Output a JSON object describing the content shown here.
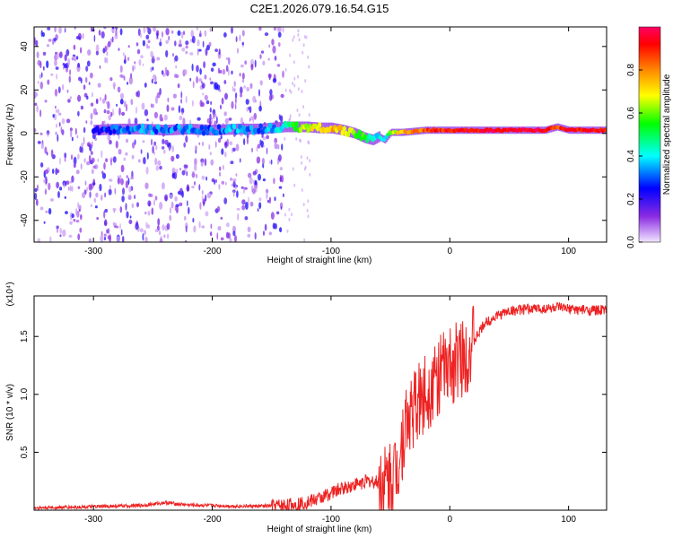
{
  "figure": {
    "title": "C2E1.2026.079.16.54.G15"
  },
  "chart_data": [
    {
      "type": "heatmap",
      "xlabel": "Height of straight line (km)",
      "ylabel": "Frequency (Hz)",
      "xlim": [
        -350,
        132
      ],
      "ylim": [
        -50,
        49
      ],
      "xticks": [
        -300,
        -200,
        -100,
        0,
        100
      ],
      "xtick_labels": [
        "-300",
        "-200",
        "-100",
        "0",
        "100"
      ],
      "yticks": [
        -40,
        -20,
        0,
        20,
        40
      ],
      "ytick_labels": [
        "-40",
        "-20",
        "0",
        "20",
        "40"
      ],
      "colorbar": {
        "label": "Normalized spectral amplitude",
        "range": [
          0,
          1
        ],
        "ticks": [
          0.0,
          0.2,
          0.4,
          0.6,
          0.8
        ],
        "tick_labels": [
          "0.0",
          "0.2",
          "0.4",
          "0.6",
          "0.8"
        ],
        "colors": [
          "#f2e6ff",
          "#8a2be2",
          "#0000ff",
          "#00ffff",
          "#00ff00",
          "#ffff00",
          "#ff8800",
          "#ff0000",
          "#ff0066"
        ]
      },
      "noise_region_x": [
        -350,
        -140
      ],
      "ridge": {
        "x": [
          -300,
          -280,
          -260,
          -240,
          -220,
          -200,
          -180,
          -160,
          -140,
          -130,
          -120,
          -110,
          -100,
          -90,
          -80,
          -72,
          -65,
          -60,
          -55,
          -50,
          -40,
          -30,
          -20,
          -10,
          0,
          20,
          40,
          60,
          80,
          90,
          100,
          110,
          132
        ],
        "freq": [
          1.5,
          2.0,
          2.0,
          1.5,
          2.0,
          1.5,
          2.0,
          2.0,
          3.0,
          3.0,
          3.0,
          2.5,
          2.5,
          1.5,
          0.0,
          -2.0,
          -3.0,
          -1.5,
          -3.0,
          0.5,
          0.5,
          1.0,
          1.5,
          1.5,
          1.5,
          1.5,
          1.5,
          1.5,
          1.5,
          3.0,
          1.5,
          1.5,
          1.5
        ],
        "amp": [
          0.25,
          0.3,
          0.35,
          0.3,
          0.35,
          0.3,
          0.35,
          0.3,
          0.4,
          0.55,
          0.65,
          0.7,
          0.75,
          0.7,
          0.6,
          0.55,
          0.45,
          0.4,
          0.35,
          0.6,
          0.75,
          0.8,
          0.85,
          0.88,
          0.9,
          0.92,
          0.95,
          0.95,
          0.95,
          0.85,
          0.95,
          0.92,
          0.9
        ]
      }
    },
    {
      "type": "line",
      "xlabel": "Height of straight line (km)",
      "ylabel": "SNR (10 * v/v)",
      "yscale_label": "(x10⁴)",
      "xlim": [
        -350,
        132
      ],
      "ylim": [
        0,
        18500
      ],
      "xticks": [
        -300,
        -200,
        -100,
        0,
        100
      ],
      "xtick_labels": [
        "-300",
        "-200",
        "-100",
        "0",
        "100"
      ],
      "yticks": [
        5000,
        10000,
        15000
      ],
      "ytick_labels": [
        "0.5",
        "1.0",
        "1.5"
      ],
      "color": "#ee2222",
      "series": [
        {
          "x": [
            -350,
            -320,
            -300,
            -280,
            -260,
            -240,
            -220,
            -200,
            -180,
            -160,
            -140,
            -130,
            -120,
            -110,
            -100,
            -90,
            -80,
            -70,
            -60,
            -55,
            -50,
            -45,
            -42,
            -38,
            -35,
            -30,
            -25,
            -20,
            -15,
            -10,
            -5,
            0,
            5,
            10,
            15,
            20,
            25,
            30,
            40,
            50,
            60,
            70,
            80,
            90,
            100,
            110,
            120,
            132
          ],
          "y": [
            200,
            250,
            300,
            350,
            400,
            650,
            450,
            400,
            350,
            350,
            400,
            500,
            700,
            1000,
            1500,
            1900,
            2200,
            2500,
            2400,
            2200,
            2800,
            3500,
            5000,
            7000,
            8000,
            8800,
            9500,
            10200,
            10800,
            11500,
            12000,
            12300,
            12800,
            13200,
            13700,
            14500,
            15400,
            16200,
            16800,
            17200,
            17300,
            17400,
            17400,
            17500,
            17350,
            17300,
            17250,
            17300
          ]
        }
      ]
    }
  ]
}
